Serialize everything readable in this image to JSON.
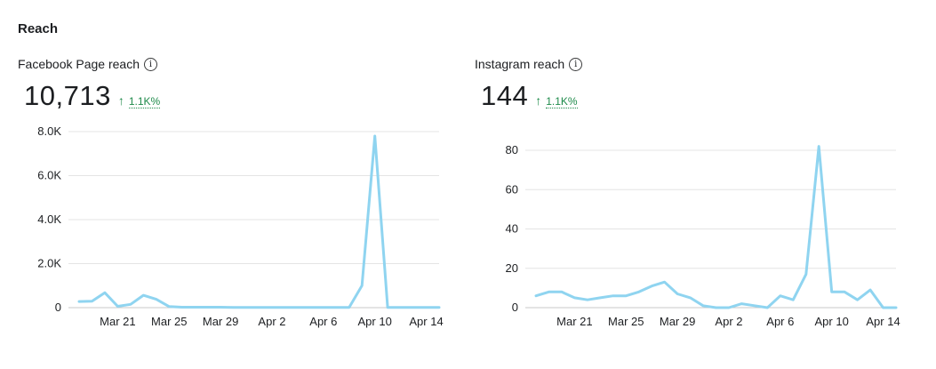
{
  "section": {
    "title": "Reach"
  },
  "charts": [
    {
      "metric_label": "Facebook Page reach",
      "info_icon": "info-icon",
      "value": "10,713",
      "change": "1.1K%",
      "change_icon": "arrow-up-icon",
      "change_color": "#1e8a4a"
    },
    {
      "metric_label": "Instagram reach",
      "info_icon": "info-icon",
      "value": "144",
      "change": "1.1K%",
      "change_icon": "arrow-up-icon",
      "change_color": "#1e8a4a"
    }
  ],
  "chart_data": [
    {
      "type": "line",
      "title": "Facebook Page reach",
      "xlabel": "",
      "ylabel": "",
      "x_ticks": [
        "Mar 21",
        "Mar 25",
        "Mar 29",
        "Apr 2",
        "Apr 6",
        "Apr 10",
        "Apr 14"
      ],
      "x_tick_index": [
        3,
        7,
        11,
        15,
        19,
        23,
        27
      ],
      "y_ticks": [
        "0",
        "2.0K",
        "4.0K",
        "6.0K",
        "8.0K"
      ],
      "y_tick_values": [
        0,
        2000,
        4000,
        6000,
        8000
      ],
      "ylim": [
        0,
        8000
      ],
      "grid": true,
      "line_color": "#8fd4f0",
      "series": [
        {
          "x": [
            "Mar 18",
            "Mar 19",
            "Mar 20",
            "Mar 21",
            "Mar 22",
            "Mar 23",
            "Mar 24",
            "Mar 25",
            "Mar 26",
            "Mar 27",
            "Mar 28",
            "Mar 29",
            "Mar 30",
            "Mar 31",
            "Apr 1",
            "Apr 2",
            "Apr 3",
            "Apr 4",
            "Apr 5",
            "Apr 6",
            "Apr 7",
            "Apr 8",
            "Apr 9",
            "Apr 10",
            "Apr 11",
            "Apr 12",
            "Apr 13",
            "Apr 14",
            "Apr 15"
          ],
          "values": [
            280,
            290,
            680,
            60,
            150,
            560,
            380,
            50,
            20,
            20,
            20,
            20,
            10,
            10,
            10,
            10,
            10,
            10,
            10,
            10,
            10,
            10,
            1000,
            7800,
            10,
            10,
            10,
            10,
            10
          ]
        }
      ]
    },
    {
      "type": "line",
      "title": "Instagram reach",
      "xlabel": "",
      "ylabel": "",
      "x_ticks": [
        "Mar 21",
        "Mar 25",
        "Mar 29",
        "Apr 2",
        "Apr 6",
        "Apr 10",
        "Apr 14"
      ],
      "x_tick_index": [
        3,
        7,
        11,
        15,
        19,
        23,
        27
      ],
      "y_ticks": [
        "0",
        "20",
        "40",
        "60",
        "80"
      ],
      "y_tick_values": [
        0,
        20,
        40,
        60,
        80
      ],
      "ylim": [
        0,
        80
      ],
      "grid": true,
      "line_color": "#8fd4f0",
      "series": [
        {
          "x": [
            "Mar 18",
            "Mar 19",
            "Mar 20",
            "Mar 21",
            "Mar 22",
            "Mar 23",
            "Mar 24",
            "Mar 25",
            "Mar 26",
            "Mar 27",
            "Mar 28",
            "Mar 29",
            "Mar 30",
            "Mar 31",
            "Apr 1",
            "Apr 2",
            "Apr 3",
            "Apr 4",
            "Apr 5",
            "Apr 6",
            "Apr 7",
            "Apr 8",
            "Apr 9",
            "Apr 10",
            "Apr 11",
            "Apr 12",
            "Apr 13",
            "Apr 14",
            "Apr 15"
          ],
          "values": [
            6,
            8,
            8,
            5,
            4,
            5,
            6,
            6,
            8,
            11,
            13,
            7,
            5,
            1,
            0,
            0,
            2,
            1,
            0,
            6,
            4,
            17,
            82,
            8,
            8,
            4,
            9,
            0,
            0
          ]
        }
      ]
    }
  ]
}
